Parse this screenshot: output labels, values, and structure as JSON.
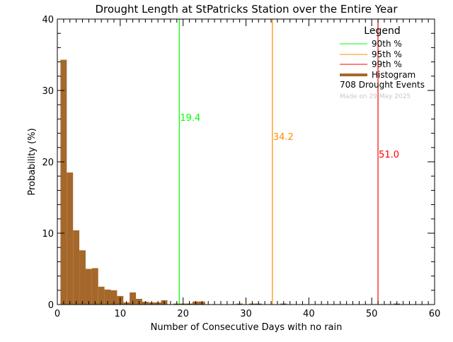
{
  "chart_data": {
    "type": "bar",
    "title": "Drought Length at StPatricks Station over the Entire Year",
    "xlabel": "Number of Consecutive Days with no rain",
    "ylabel": "Probability (%)",
    "xlim": [
      0,
      60
    ],
    "ylim": [
      0,
      40
    ],
    "xticks": [
      "0",
      "10",
      "20",
      "30",
      "40",
      "50",
      "60"
    ],
    "yticks": [
      "0",
      "10",
      "20",
      "30",
      "40"
    ],
    "grid": false,
    "legend_placement": "top-right",
    "bar_color": "#a5682a",
    "histogram": {
      "days": [
        1,
        2,
        3,
        4,
        5,
        6,
        7,
        8,
        9,
        10,
        11,
        12,
        13,
        14,
        15,
        16,
        17,
        19,
        20,
        21,
        22,
        23,
        29,
        31,
        32,
        36,
        54
      ],
      "values": [
        34.3,
        18.5,
        10.4,
        7.6,
        5.0,
        5.1,
        2.5,
        2.1,
        2.0,
        1.2,
        0.3,
        1.7,
        0.8,
        0.4,
        0.3,
        0.3,
        0.6,
        0.14,
        0.14,
        0.14,
        0.42,
        0.42,
        0.14,
        0.14,
        0.14,
        0.14,
        0.14
      ]
    },
    "percentiles": [
      {
        "name": "90th %",
        "value": 19.4,
        "label": "19.4",
        "color": "#00ff00"
      },
      {
        "name": "95th %",
        "value": 34.2,
        "label": "34.2",
        "color": "#ff8c00"
      },
      {
        "name": "99th %",
        "value": 51.0,
        "label": "51.0",
        "color": "#ff0000"
      }
    ],
    "legend": {
      "title": "Legend",
      "entries": [
        "90th %",
        "95th %",
        "99th %",
        "Histogram"
      ],
      "events": "708 Drought Events",
      "made_on": "Made on 29 May 2025"
    }
  }
}
